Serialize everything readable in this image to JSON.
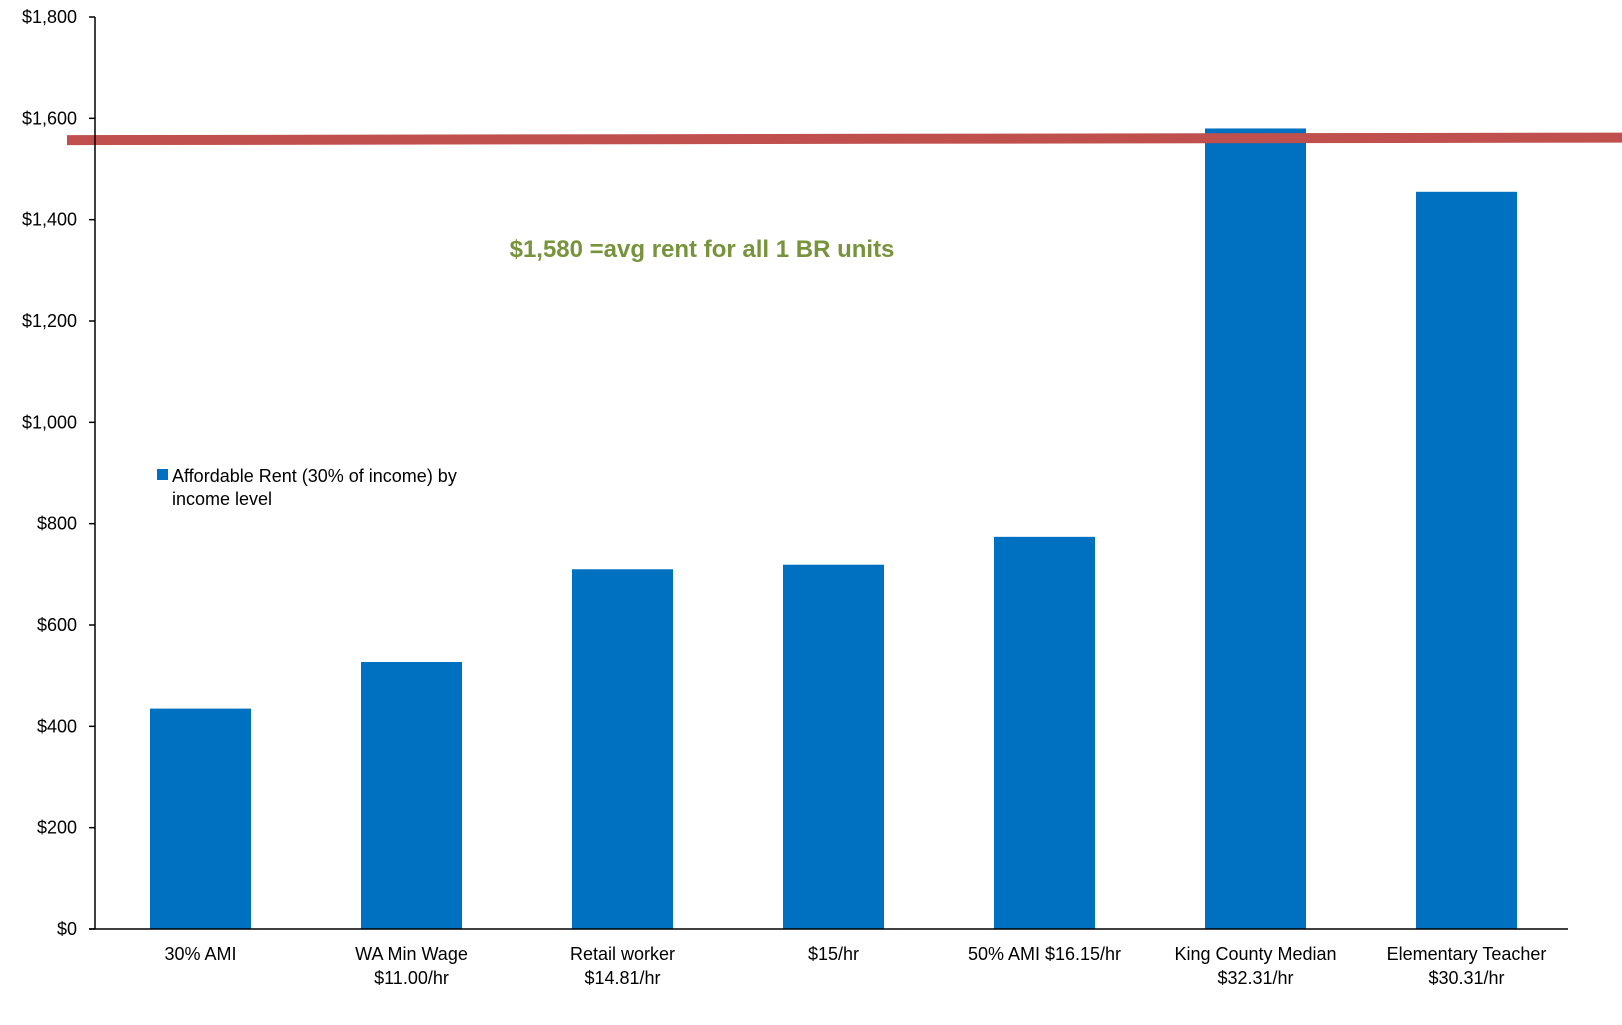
{
  "chart_data": {
    "type": "bar",
    "categories": [
      [
        "30% AMI"
      ],
      [
        "WA Min Wage",
        "$11.00/hr"
      ],
      [
        "Retail worker",
        "$14.81/hr"
      ],
      [
        "$15/hr"
      ],
      [
        "50% AMI $16.15/hr"
      ],
      [
        "King County Median",
        "$32.31/hr"
      ],
      [
        "Elementary Teacher",
        "$30.31/hr"
      ]
    ],
    "series": [
      {
        "name": "Affordable Rent (30% of income) by income level",
        "values": [
          435,
          527,
          710,
          719,
          774,
          1580,
          1455
        ]
      }
    ],
    "reference_line": {
      "value": 1557,
      "value_end": 1562,
      "color": "#c0504d"
    },
    "annotation": "$1,580 =avg rent for all 1 BR units",
    "annotation_color": "#77933c",
    "yticks": [
      "$0",
      "$200",
      "$400",
      "$600",
      "$800",
      "$1,000",
      "$1,200",
      "$1,400",
      "$1,600",
      "$1,800"
    ],
    "ylim": [
      0,
      1800
    ],
    "bar_color": "#0070c0",
    "legend_lines": [
      "Affordable Rent (30% of income) by",
      "income level"
    ],
    "legend_position": "left",
    "grid": false,
    "title": "",
    "xlabel": "",
    "ylabel": ""
  }
}
